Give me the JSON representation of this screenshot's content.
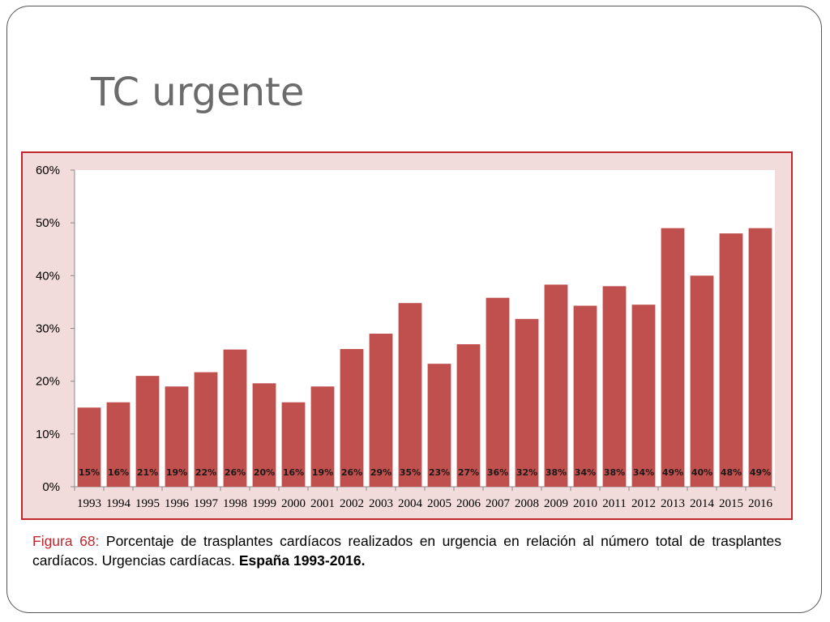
{
  "slide": {
    "title": "TC urgente"
  },
  "caption": {
    "label": "Figura 68:",
    "text": " Porcentaje de trasplantes cardíacos realizados en urgencia en relación al número total de trasplantes cardíacos. Urgencias cardíacas. ",
    "bold": "España 1993-2016."
  },
  "colors": {
    "bar": "#c0504d",
    "plot_bg": "#ffffff",
    "outer_bg": "#f2dcdb",
    "border": "#c0282d",
    "caption_label": "#c0282d",
    "title": "#6b6b6b"
  },
  "chart_data": {
    "type": "bar",
    "title": "",
    "xlabel": "",
    "ylabel": "",
    "ylim": [
      0,
      60
    ],
    "yticks": [
      "0%",
      "10%",
      "20%",
      "30%",
      "40%",
      "50%",
      "60%"
    ],
    "categories": [
      "1993",
      "1994",
      "1995",
      "1996",
      "1997",
      "1998",
      "1999",
      "2000",
      "2001",
      "2002",
      "2003",
      "2004",
      "2005",
      "2006",
      "2007",
      "2008",
      "2009",
      "2010",
      "2011",
      "2012",
      "2013",
      "2014",
      "2015",
      "2016"
    ],
    "values": [
      15,
      16,
      21,
      19,
      21.7,
      26,
      19.6,
      16,
      19,
      26.1,
      29,
      34.8,
      23.3,
      27,
      35.8,
      31.8,
      38.3,
      34.3,
      38,
      34.5,
      49,
      40,
      48,
      49
    ],
    "data_labels": [
      "15%",
      "16%",
      "21%",
      "19%",
      "22%",
      "26%",
      "20%",
      "16%",
      "19%",
      "26%",
      "29%",
      "35%",
      "23%",
      "27%",
      "36%",
      "32%",
      "38%",
      "34%",
      "38%",
      "34%",
      "49%",
      "40%",
      "48%",
      "49%"
    ],
    "grid": false,
    "legend": "none"
  }
}
